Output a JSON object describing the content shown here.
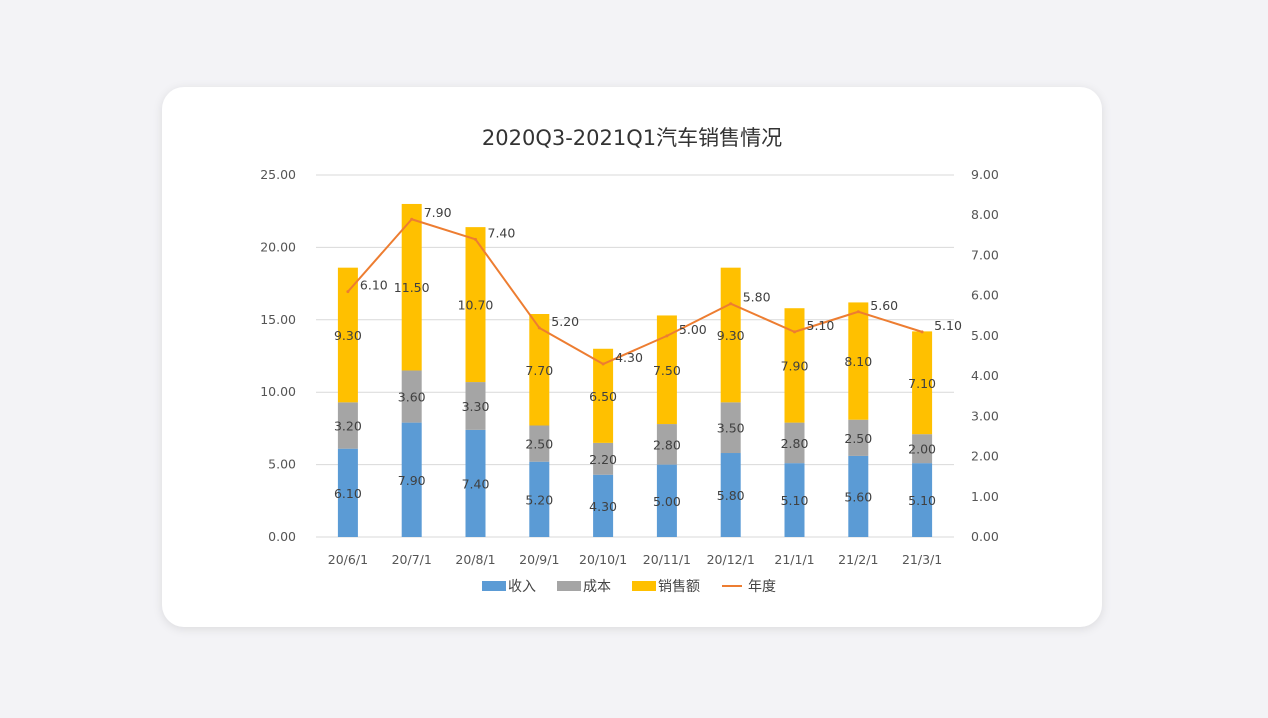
{
  "chart_data": {
    "type": "bar",
    "stacked": true,
    "title": "2020Q3-2021Q1汽车销售情况",
    "categories": [
      "20/6/1",
      "20/7/1",
      "20/8/1",
      "20/9/1",
      "20/10/1",
      "20/11/1",
      "20/12/1",
      "21/1/1",
      "21/2/1",
      "21/3/1"
    ],
    "series": [
      {
        "name": "收入",
        "axis": "left",
        "color": "#5b9bd5",
        "values": [
          6.1,
          7.9,
          7.4,
          5.2,
          4.3,
          5.0,
          5.8,
          5.1,
          5.6,
          5.1
        ],
        "labels": [
          "6.10",
          "7.90",
          "7.40",
          "5.20",
          "4.30",
          "5.00",
          "5.80",
          "5.10",
          "5.60",
          "5.10"
        ]
      },
      {
        "name": "成本",
        "axis": "left",
        "color": "#a5a5a5",
        "values": [
          3.2,
          3.6,
          3.3,
          2.5,
          2.2,
          2.8,
          3.5,
          2.8,
          2.5,
          2.0
        ],
        "labels": [
          "3.20",
          "3.60",
          "3.30",
          "2.50",
          "2.20",
          "2.80",
          "3.50",
          "2.80",
          "2.50",
          "2.00"
        ]
      },
      {
        "name": "销售额",
        "axis": "left",
        "color": "#ffc000",
        "values": [
          9.3,
          11.5,
          10.7,
          7.7,
          6.5,
          7.5,
          9.3,
          7.9,
          8.1,
          7.1
        ],
        "labels": [
          "9.30",
          "11.50",
          "10.70",
          "7.70",
          "6.50",
          "7.50",
          "9.30",
          "7.90",
          "8.10",
          "7.10"
        ]
      },
      {
        "name": "年度",
        "type": "line",
        "axis": "right",
        "color": "#ed7d31",
        "values": [
          6.1,
          7.9,
          7.4,
          5.2,
          4.3,
          5.0,
          5.8,
          5.1,
          5.6,
          5.1
        ],
        "labels": [
          "6.10",
          "7.90",
          "7.40",
          "5.20",
          "4.30",
          "5.00",
          "5.80",
          "5.10",
          "5.60",
          "5.10"
        ]
      }
    ],
    "ylim": [
      0,
      25
    ],
    "yticks": [
      "0.00",
      "5.00",
      "10.00",
      "15.00",
      "20.00",
      "25.00"
    ],
    "y2lim": [
      0,
      9
    ],
    "y2ticks": [
      "0.00",
      "1.00",
      "2.00",
      "3.00",
      "4.00",
      "5.00",
      "6.00",
      "7.00",
      "8.00",
      "9.00"
    ],
    "grid": true,
    "legend": "bottom"
  }
}
